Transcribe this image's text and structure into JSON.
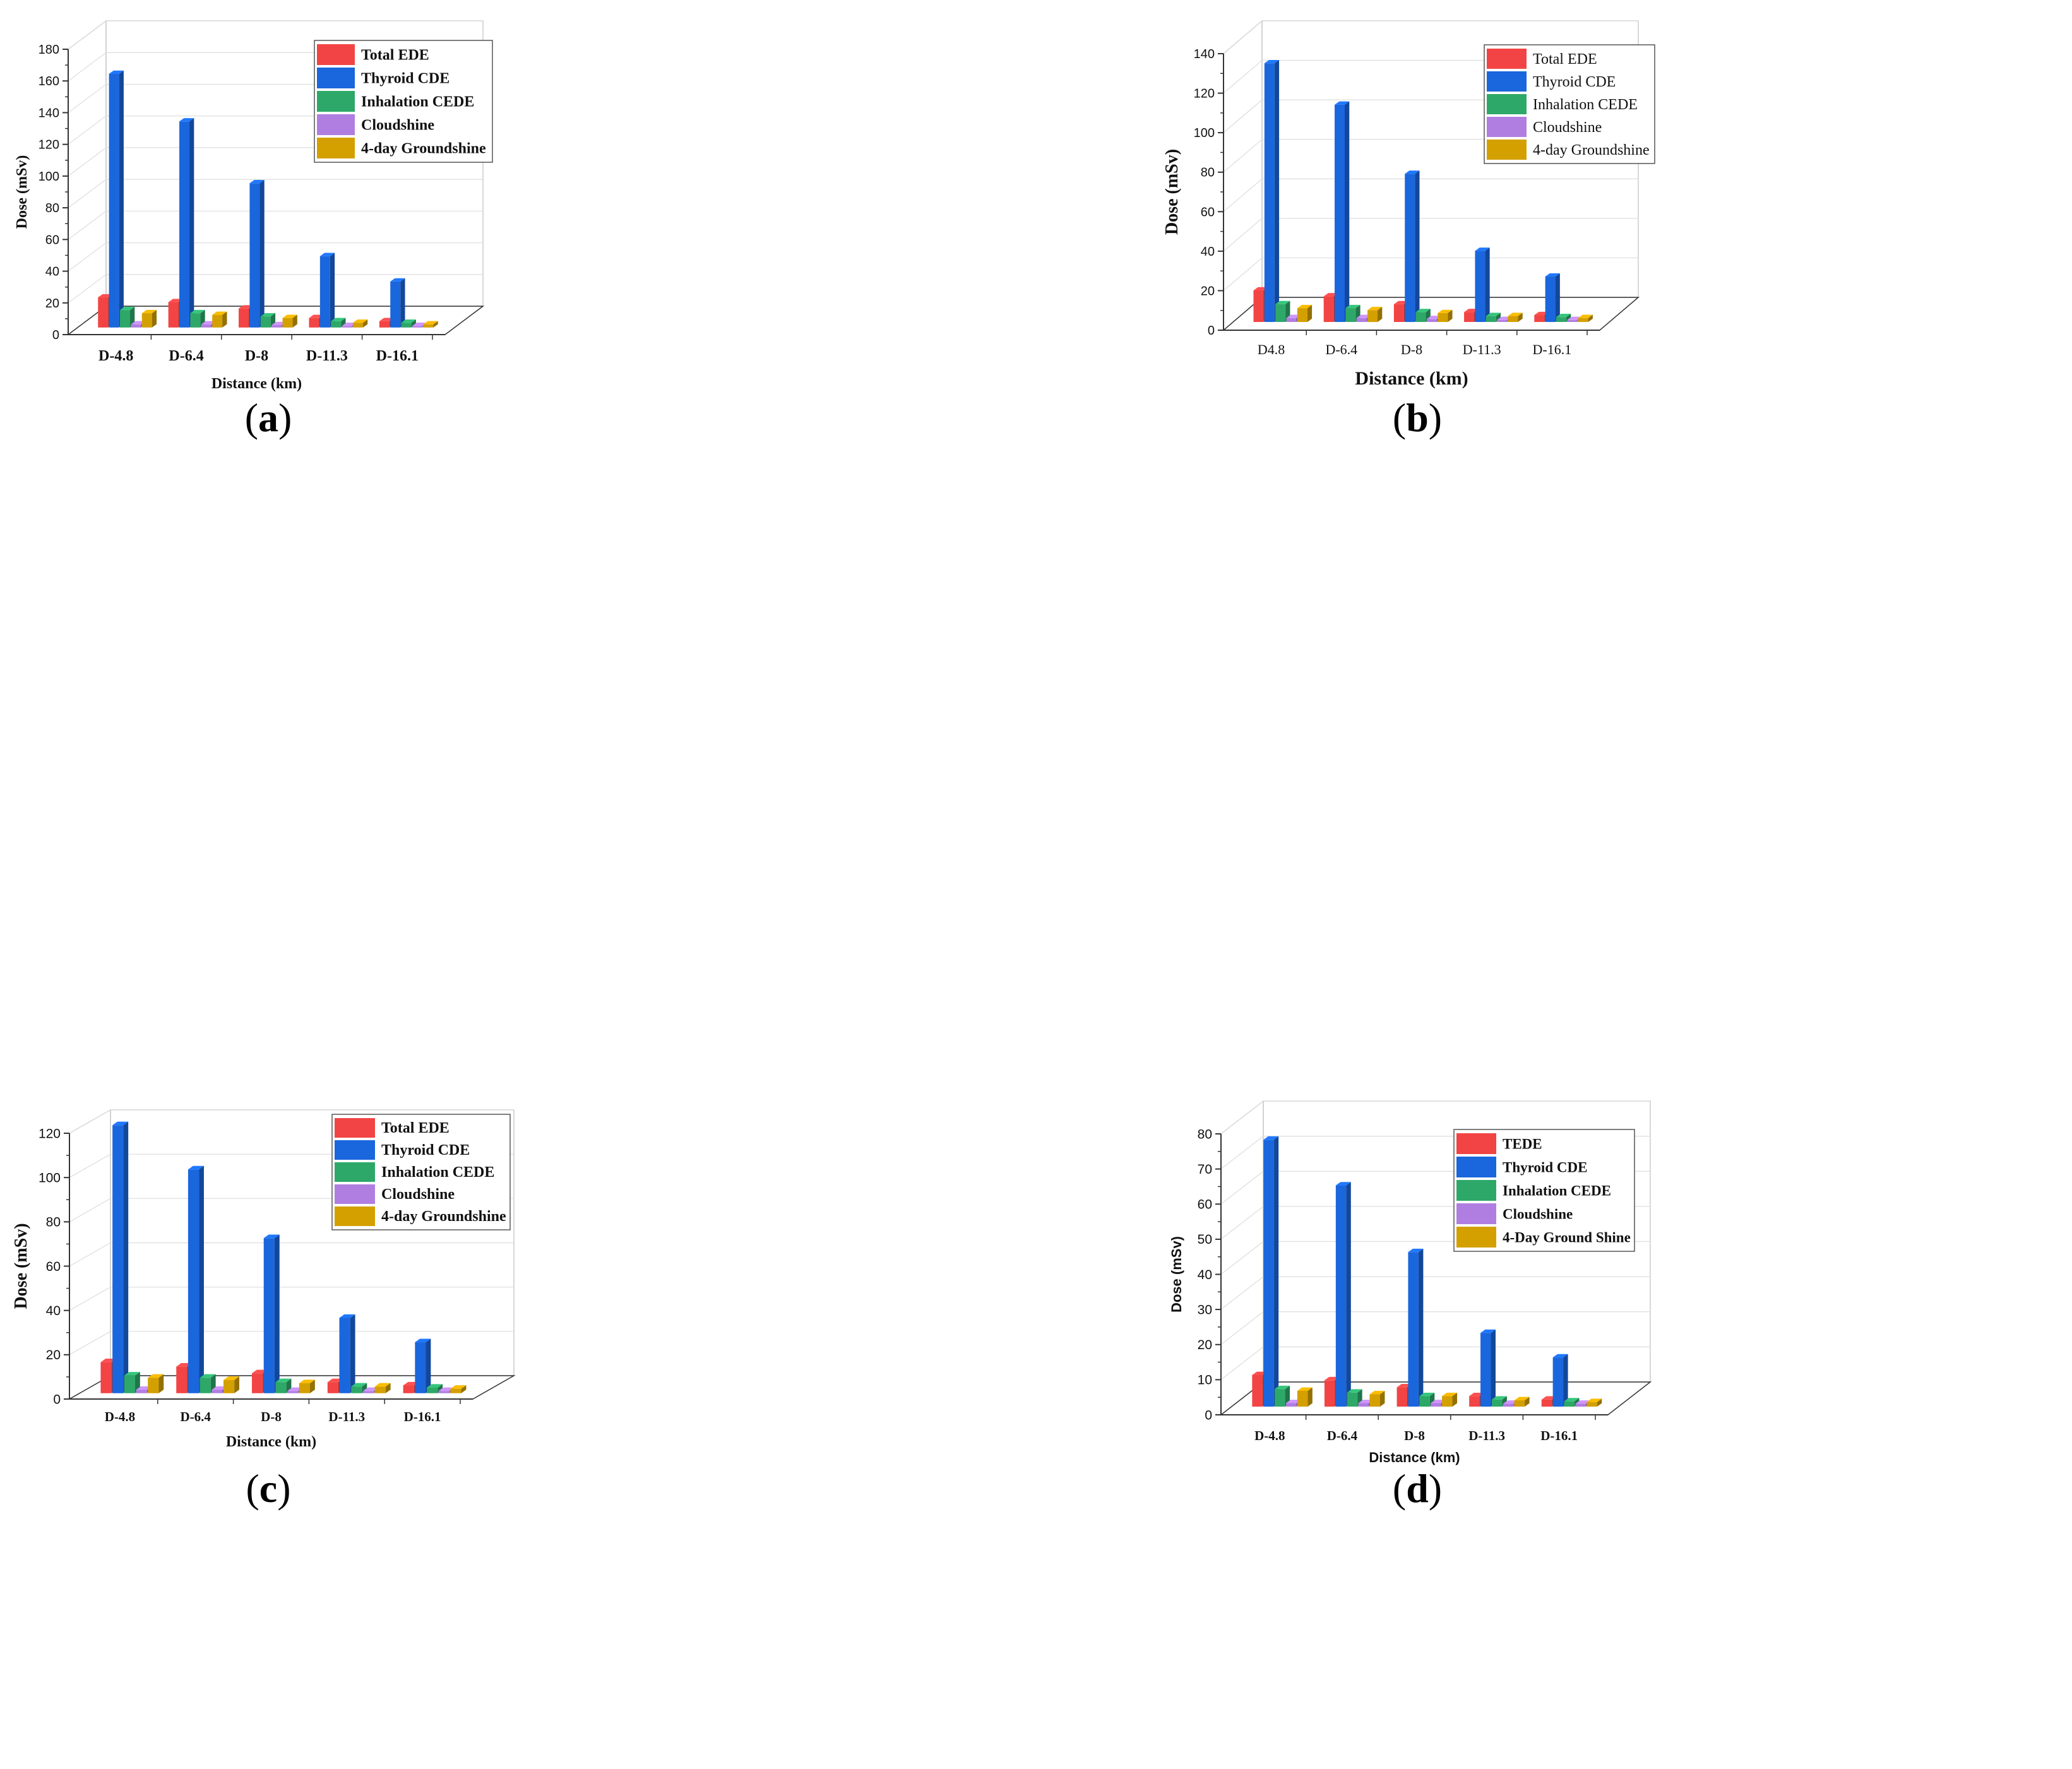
{
  "figure": {
    "panels": [
      {
        "id": "a",
        "caption_open": "(",
        "caption_letter": "a",
        "caption_close": ")"
      },
      {
        "id": "b",
        "caption_open": "(",
        "caption_letter": "b",
        "caption_close": ")"
      },
      {
        "id": "c",
        "caption_open": "(",
        "caption_letter": "c",
        "caption_close": ")"
      },
      {
        "id": "d",
        "caption_open": "(",
        "caption_letter": "d",
        "caption_close": ")"
      }
    ]
  },
  "colors": {
    "series": [
      "#f24444",
      "#1a66dd",
      "#2ea868",
      "#b07ee0",
      "#d4a000"
    ],
    "grid": "#dddddd",
    "axis": "#333333"
  },
  "chart_data": [
    {
      "type": "bar",
      "panel": "a",
      "title": "",
      "xlabel": "Distance (km)",
      "ylabel": "Dose (mSv)",
      "categories": [
        "D-4.8",
        "D-6.4",
        "D-8",
        "D-11.3",
        "D-16.1"
      ],
      "ylim": [
        0,
        180
      ],
      "yticks": [
        0,
        20,
        40,
        60,
        80,
        100,
        120,
        140,
        160,
        180
      ],
      "legend_position": "top-right",
      "series": [
        {
          "name": "Total EDE",
          "values": [
            19,
            16,
            12,
            6,
            4
          ]
        },
        {
          "name": "Thyroid CDE",
          "values": [
            160,
            130,
            91,
            45,
            29
          ]
        },
        {
          "name": "Inhalation CEDE",
          "values": [
            11,
            9,
            7,
            4,
            3
          ]
        },
        {
          "name": "Cloudshine",
          "values": [
            2,
            2,
            1.5,
            1,
            1
          ]
        },
        {
          "name": "4-day Groundshine",
          "values": [
            9,
            8,
            6,
            3,
            2
          ]
        }
      ]
    },
    {
      "type": "bar",
      "panel": "b",
      "title": "",
      "xlabel": "Distance (km)",
      "ylabel": "Dose (mSv)",
      "categories": [
        "D4.8",
        "D-6.4",
        "D-8",
        "D-11.3",
        "D-16.1"
      ],
      "ylim": [
        0,
        140
      ],
      "yticks": [
        0,
        20,
        40,
        60,
        80,
        100,
        120,
        140
      ],
      "legend_position": "top-right",
      "series": [
        {
          "name": "Total EDE",
          "values": [
            16,
            13,
            9,
            5,
            3.5
          ]
        },
        {
          "name": "Thyroid CDE",
          "values": [
            131,
            110,
            75,
            36,
            23
          ]
        },
        {
          "name": "Inhalation CEDE",
          "values": [
            9,
            7,
            5,
            3,
            2.5
          ]
        },
        {
          "name": "Cloudshine",
          "values": [
            2,
            2,
            1.5,
            1,
            1
          ]
        },
        {
          "name": "4-day Groundshine",
          "values": [
            7,
            6,
            4.5,
            3,
            2
          ]
        }
      ]
    },
    {
      "type": "bar",
      "panel": "c",
      "title": "",
      "xlabel": "Distance (km)",
      "ylabel": "Dose (mSv)",
      "categories": [
        "D-4.8",
        "D-6.4",
        "D-8",
        "D-11.3",
        "D-16.1"
      ],
      "ylim": [
        0,
        120
      ],
      "yticks": [
        0,
        20,
        40,
        60,
        80,
        100,
        120
      ],
      "legend_position": "top-right",
      "series": [
        {
          "name": "Total EDE",
          "values": [
            14,
            12,
            9,
            5,
            3.5
          ]
        },
        {
          "name": "Thyroid CDE",
          "values": [
            121,
            101,
            70,
            34,
            23
          ]
        },
        {
          "name": "Inhalation CEDE",
          "values": [
            8,
            7,
            5,
            3,
            2.5
          ]
        },
        {
          "name": "Cloudshine",
          "values": [
            1.5,
            1.5,
            1,
            1,
            1
          ]
        },
        {
          "name": "4-day Groundshine",
          "values": [
            7,
            6,
            4.5,
            3,
            2
          ]
        }
      ]
    },
    {
      "type": "bar",
      "panel": "d",
      "title": "",
      "xlabel": "Distance (km)",
      "ylabel": "Dose (mSv)",
      "categories": [
        "D-4.8",
        "D-6.4",
        "D-8",
        "D-11.3",
        "D-16.1"
      ],
      "ylim": [
        0,
        80
      ],
      "yticks": [
        0,
        10,
        20,
        30,
        40,
        50,
        60,
        70,
        80
      ],
      "legend_position": "top-right",
      "series": [
        {
          "name": "TEDE",
          "values": [
            9,
            7.5,
            5.5,
            3,
            2
          ]
        },
        {
          "name": "Thyroid CDE",
          "values": [
            76,
            63,
            44,
            21,
            14
          ]
        },
        {
          "name": "Inhalation CEDE",
          "values": [
            5,
            4,
            3,
            2,
            1.5
          ]
        },
        {
          "name": "Cloudshine",
          "values": [
            1,
            1,
            1,
            0.8,
            0.8
          ]
        },
        {
          "name": "4-Day Ground Shine",
          "values": [
            4.5,
            3.5,
            3,
            1.8,
            1.3
          ]
        }
      ]
    }
  ]
}
